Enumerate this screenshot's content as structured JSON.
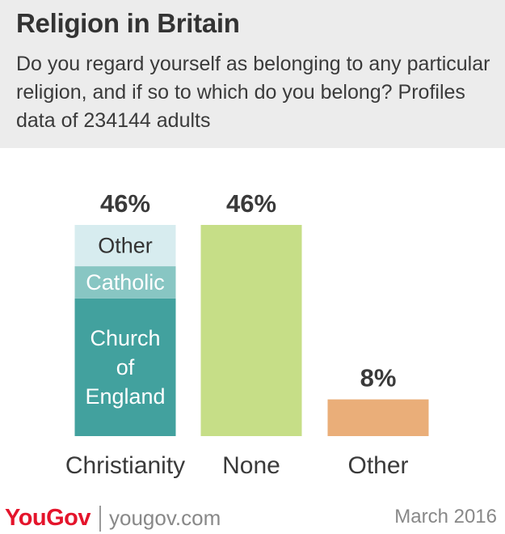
{
  "header": {
    "title": "Religion in Britain",
    "subtitle": "Do you regard yourself as belonging to any particular religion, and if so to which do you belong? Profiles data of 234144 adults"
  },
  "footer": {
    "brand": "YouGov",
    "url": "yougov.com",
    "date": "March 2016"
  },
  "chart_data": {
    "type": "bar",
    "stacked": true,
    "categories": [
      "Christianity",
      "None",
      "Other"
    ],
    "value_labels": [
      "46%",
      "46%",
      "8%"
    ],
    "ylim": [
      0,
      46
    ],
    "bars": [
      {
        "category": "Christianity",
        "total": 46,
        "segments": [
          {
            "label": "Church of England",
            "label_lines": [
              "Church",
              "of",
              "England"
            ],
            "value": 30,
            "color": "#42a19e",
            "text_color": "#ffffff"
          },
          {
            "label": "Catholic",
            "label_lines": [
              "Catholic"
            ],
            "value": 7,
            "color": "#88c6c3",
            "text_color": "#ffffff"
          },
          {
            "label": "Other",
            "label_lines": [
              "Other"
            ],
            "value": 9,
            "color": "#d7ecef",
            "text_color": "#333333"
          }
        ]
      },
      {
        "category": "None",
        "total": 46,
        "segments": [
          {
            "label": "",
            "label_lines": [],
            "value": 46,
            "color": "#c6de87",
            "text_color": "#333333"
          }
        ]
      },
      {
        "category": "Other",
        "total": 8,
        "segments": [
          {
            "label": "",
            "label_lines": [],
            "value": 8,
            "color": "#eaae79",
            "text_color": "#333333"
          }
        ]
      }
    ]
  }
}
